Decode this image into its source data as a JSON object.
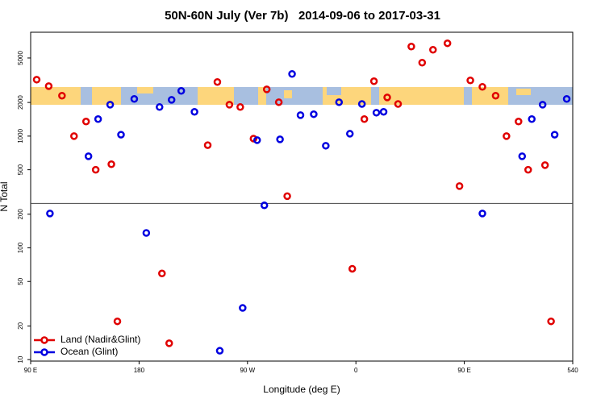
{
  "chart_data": {
    "type": "scatter",
    "title": "50N-60N July (Ver 7b)   2014-09-06 to 2017-03-31",
    "x_label": "Longitude (deg E)",
    "y_label": "N Total",
    "log_y": true,
    "legend": "bottom-left",
    "hline": 250,
    "xlim": [
      90,
      540
    ],
    "ylim": [
      9.7,
      8500
    ],
    "xticks": [
      {
        "value": 90,
        "label": "90 E"
      },
      180,
      {
        "value": 270,
        "label": "90 W"
      },
      {
        "value": 360,
        "label": "0"
      },
      {
        "value": 450,
        "label": "90 E"
      },
      540
    ],
    "yticks": [
      10,
      20,
      50,
      100,
      200,
      500,
      1000,
      2000,
      5000
    ],
    "series": [
      {
        "name": "Land (Nadir&Glint)",
        "color": "#e00000",
        "x": [
          95,
          105,
          116,
          126,
          136,
          144,
          157,
          162,
          199,
          205,
          237,
          245,
          255,
          264,
          275,
          286,
          296,
          303,
          357,
          367,
          375,
          386,
          395,
          406,
          415,
          424,
          436,
          446,
          455,
          465,
          476,
          485,
          495,
          503,
          517,
          522
        ],
        "y": [
          3200,
          2800,
          2300,
          1000,
          1350,
          500,
          560,
          22,
          59,
          14,
          830,
          3050,
          1910,
          1820,
          950,
          2620,
          2010,
          290,
          65,
          1420,
          3100,
          2220,
          1940,
          6330,
          4540,
          5920,
          6770,
          357,
          3150,
          2760,
          2300,
          1000,
          1350,
          500,
          550,
          22
        ]
      },
      {
        "name": "Ocean (Glint)",
        "color": "#0000e0",
        "x": [
          106,
          138,
          146,
          156,
          165,
          176,
          186,
          197,
          207,
          215,
          226,
          247,
          266,
          278,
          284,
          297,
          307,
          314,
          325,
          335,
          346,
          355,
          365,
          377,
          383,
          465,
          498,
          506,
          515,
          525,
          535
        ],
        "y": [
          203,
          660,
          1420,
          1910,
          1030,
          2150,
          136,
          1820,
          2110,
          2540,
          1650,
          12,
          29,
          920,
          240,
          935,
          3600,
          1540,
          1570,
          820,
          2010,
          1050,
          1940,
          1620,
          1650,
          203,
          660,
          1420,
          1910,
          1030,
          2150
        ]
      }
    ]
  }
}
